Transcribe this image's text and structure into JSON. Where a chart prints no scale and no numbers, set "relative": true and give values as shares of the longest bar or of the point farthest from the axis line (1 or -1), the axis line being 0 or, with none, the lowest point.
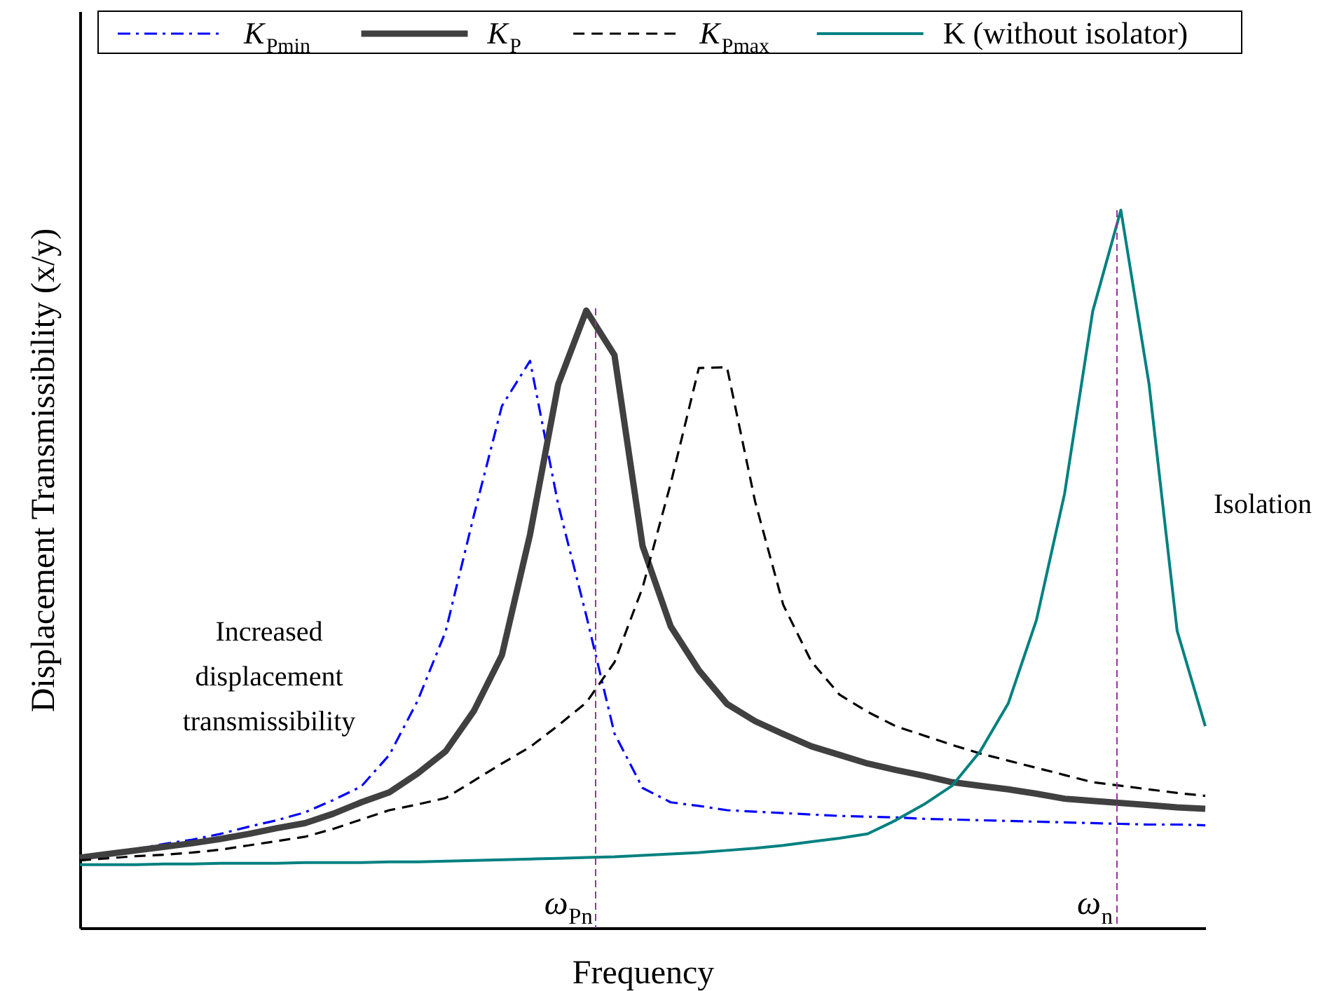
{
  "chart_data": {
    "type": "line",
    "relative": true,
    "xlabel": "Frequency",
    "ylabel": "Displacement Transmissibility (x/y)",
    "categories": [
      null,
      null,
      null,
      null,
      null,
      null,
      null,
      null,
      null,
      null,
      null,
      null,
      null,
      null,
      null,
      null,
      null,
      null,
      null,
      null,
      null,
      null,
      null,
      null,
      null,
      null,
      null,
      null,
      null,
      null,
      null,
      null,
      null,
      null,
      null,
      null,
      null,
      null,
      null,
      null,
      null
    ],
    "legend": "top",
    "series": [
      {
        "name": "K$_{Pmin}$",
        "color": "#0000ff",
        "line_style": "dashdot",
        "values": [
          0.098,
          0.104,
          0.11,
          0.117,
          0.123,
          0.131,
          0.141,
          0.15,
          0.161,
          0.178,
          0.197,
          0.241,
          0.316,
          0.413,
          0.574,
          0.727,
          0.79,
          0.59,
          0.435,
          0.271,
          0.195,
          0.175,
          0.17,
          0.164,
          0.162,
          0.16,
          0.158,
          0.156,
          0.155,
          0.154,
          0.152,
          0.151,
          0.15,
          0.149,
          0.148,
          0.147,
          0.146,
          0.145,
          0.144,
          0.144,
          0.143
        ]
      },
      {
        "name": "K$_{P}$",
        "color": "#404040",
        "line_style": "solid",
        "values": [
          0.098,
          0.103,
          0.108,
          0.113,
          0.118,
          0.124,
          0.131,
          0.139,
          0.146,
          0.159,
          0.175,
          0.189,
          0.215,
          0.246,
          0.302,
          0.38,
          0.548,
          0.757,
          0.86,
          0.798,
          0.532,
          0.42,
          0.359,
          0.312,
          0.288,
          0.27,
          0.253,
          0.241,
          0.229,
          0.22,
          0.212,
          0.203,
          0.198,
          0.193,
          0.187,
          0.18,
          0.177,
          0.174,
          0.171,
          0.168,
          0.166
        ]
      },
      {
        "name": "K$_{Pmax}$",
        "color": "#000000",
        "line_style": "dashed",
        "values": [
          0.094,
          0.097,
          0.1,
          0.102,
          0.105,
          0.109,
          0.115,
          0.121,
          0.127,
          0.138,
          0.151,
          0.164,
          0.172,
          0.181,
          0.205,
          0.229,
          0.252,
          0.282,
          0.314,
          0.37,
          0.474,
          0.619,
          0.78,
          0.781,
          0.594,
          0.45,
          0.371,
          0.325,
          0.301,
          0.281,
          0.268,
          0.255,
          0.243,
          0.233,
          0.223,
          0.213,
          0.203,
          0.198,
          0.193,
          0.188,
          0.184
        ]
      },
      {
        "name": "K (without isolator)",
        "color": "#008080",
        "line_style": "solid",
        "values": [
          0.088,
          0.088,
          0.088,
          0.089,
          0.089,
          0.09,
          0.09,
          0.09,
          0.091,
          0.091,
          0.091,
          0.092,
          0.092,
          0.093,
          0.094,
          0.095,
          0.096,
          0.097,
          0.098,
          0.099,
          0.101,
          0.103,
          0.105,
          0.108,
          0.111,
          0.115,
          0.12,
          0.125,
          0.131,
          0.15,
          0.172,
          0.198,
          0.246,
          0.313,
          0.429,
          0.605,
          0.859,
          1,
          0.758,
          0.414,
          0.281
        ]
      }
    ],
    "annotations": [
      "Increased displacement transmissibility",
      "Isolation",
      "ω$_{Pn}$",
      "ω$_{n}$"
    ]
  }
}
